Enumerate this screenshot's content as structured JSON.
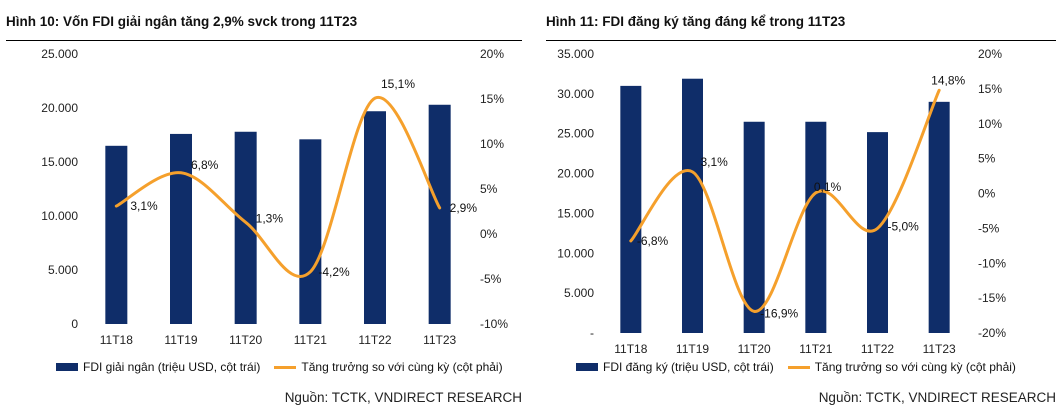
{
  "colors": {
    "bar": "#0f2d69",
    "line": "#f5a02c"
  },
  "source_text": "Nguồn:  TCTK, VNDIRECT RESEARCH",
  "chart_data": [
    {
      "type": "bar",
      "title": "Hình 10: Vốn FDI giải ngân tăng 2,9% svck trong 11T23",
      "categories": [
        "11T18",
        "11T19",
        "11T20",
        "11T21",
        "11T22",
        "11T23"
      ],
      "series": [
        {
          "name": "FDI giải ngân (triệu USD, cột trái)",
          "type": "bar",
          "axis": "left",
          "values": [
            16500,
            17600,
            17800,
            17100,
            19700,
            20300
          ]
        },
        {
          "name": "Tăng trưởng so với cùng kỳ (cột phải)",
          "type": "line",
          "axis": "right",
          "smooth": true,
          "values": [
            3.1,
            6.8,
            1.3,
            -4.2,
            15.1,
            2.9
          ],
          "labels": [
            "3,1%",
            "6,8%",
            "1,3%",
            "-4,2%",
            "15,1%",
            "2,9%"
          ]
        }
      ],
      "left_axis": {
        "ylim": [
          0,
          25000
        ],
        "ticks": [
          0,
          5000,
          10000,
          15000,
          20000,
          25000
        ],
        "tick_labels": [
          "0",
          "5.000",
          "10.000",
          "15.000",
          "20.000",
          "25.000"
        ]
      },
      "right_axis": {
        "ylim": [
          -10,
          20
        ],
        "ticks": [
          -10,
          -5,
          0,
          5,
          10,
          15,
          20
        ],
        "tick_labels": [
          "-10%",
          "-5%",
          "0%",
          "5%",
          "10%",
          "15%",
          "20%"
        ]
      },
      "grid": false,
      "legend_position": "bottom"
    },
    {
      "type": "bar",
      "title": "Hình 11: FDI đăng ký tăng đáng kể trong 11T23",
      "categories": [
        "11T18",
        "11T19",
        "11T20",
        "11T21",
        "11T22",
        "11T23"
      ],
      "series": [
        {
          "name": "FDI đăng ký (triệu USD, cột trái)",
          "type": "bar",
          "axis": "left",
          "values": [
            31000,
            31900,
            26500,
            26500,
            25200,
            29000
          ]
        },
        {
          "name": "Tăng trưởng so với cùng kỳ (cột phải)",
          "type": "line",
          "axis": "right",
          "smooth": true,
          "values": [
            -6.8,
            3.1,
            -16.9,
            0.1,
            -5.0,
            14.8
          ],
          "labels": [
            "-6,8%",
            "3,1%",
            "-16,9%",
            "0,1%",
            "-5,0%",
            "14,8%"
          ]
        }
      ],
      "left_axis": {
        "ylim": [
          0,
          35000
        ],
        "ticks": [
          0,
          5000,
          10000,
          15000,
          20000,
          25000,
          30000,
          35000
        ],
        "tick_labels": [
          "-",
          "5.000",
          "10.000",
          "15.000",
          "20.000",
          "25.000",
          "30.000",
          "35.000"
        ]
      },
      "right_axis": {
        "ylim": [
          -20,
          20
        ],
        "ticks": [
          -20,
          -15,
          -10,
          -5,
          0,
          5,
          10,
          15,
          20
        ],
        "tick_labels": [
          "-20%",
          "-15%",
          "-10%",
          "-5%",
          "0%",
          "5%",
          "10%",
          "15%",
          "20%"
        ]
      },
      "grid": false,
      "legend_position": "bottom"
    }
  ]
}
